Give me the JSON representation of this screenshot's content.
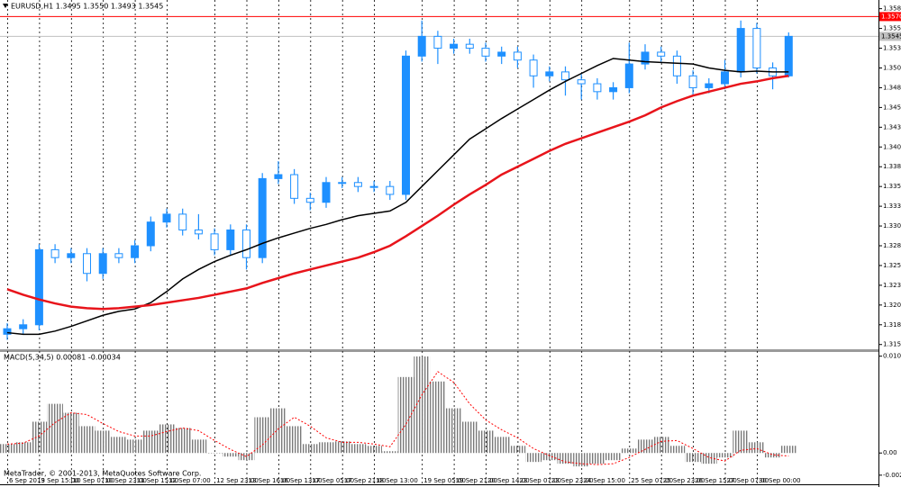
{
  "chart_data": [
    {
      "type": "candlestick",
      "title": "EURUSD,H1  1.3495 1.3550 1.3493 1.3545",
      "categories": [
        "6 Sep 2013",
        null,
        "9 Sep 15:00",
        null,
        "10 Sep 07:00",
        null,
        "10 Sep 23:00",
        null,
        "11 Sep 15:00",
        null,
        "12 Sep 07:00",
        null,
        null,
        "12 Sep 23:00",
        null,
        "13 Sep 16:00",
        null,
        "16 Sep 13:00",
        null,
        "17 Sep 05:00",
        null,
        "17 Sep 21:00",
        null,
        "18 Sep 13:00",
        null,
        null,
        "19 Sep 05:00",
        null,
        "19 Sep 21:00",
        null,
        "20 Sep 14:00",
        null,
        "23 Sep 07:00",
        null,
        "23 Sep 23:00",
        null,
        "24 Sep 15:00",
        null,
        null,
        "25 Sep 07:00",
        null,
        "25 Sep 23:00",
        null,
        "26 Sep 15:00",
        null,
        "27 Sep 07:00",
        null,
        "30 Sep 00:00",
        null,
        null
      ],
      "open": [
        1.3168,
        1.3175,
        1.318,
        1.3275,
        1.3265,
        1.327,
        1.3245,
        1.327,
        1.3265,
        1.328,
        1.331,
        1.332,
        1.33,
        1.3295,
        1.3275,
        1.33,
        1.3265,
        1.3365,
        1.337,
        1.334,
        1.3335,
        1.336,
        1.336,
        1.3355,
        1.3355,
        1.3345,
        1.352,
        1.3545,
        1.353,
        1.3535,
        1.353,
        1.352,
        1.3525,
        1.3515,
        1.3495,
        1.35,
        1.349,
        1.3485,
        1.3475,
        1.348,
        1.351,
        1.3525,
        1.352,
        1.3495,
        1.348,
        1.3485,
        1.35,
        1.3555,
        1.3505,
        1.3495
      ],
      "high": [
        1.3182,
        1.3187,
        1.3282,
        1.3282,
        1.3277,
        1.3277,
        1.3277,
        1.3277,
        1.3287,
        1.3317,
        1.3327,
        1.3327,
        1.332,
        1.3302,
        1.3307,
        1.3307,
        1.3372,
        1.3387,
        1.3377,
        1.3347,
        1.3367,
        1.3367,
        1.3367,
        1.3362,
        1.3362,
        1.3527,
        1.3565,
        1.3552,
        1.3542,
        1.3542,
        1.3537,
        1.3532,
        1.3532,
        1.3522,
        1.3507,
        1.3507,
        1.3497,
        1.3492,
        1.3487,
        1.3537,
        1.3535,
        1.3532,
        1.3527,
        1.3502,
        1.3492,
        1.3515,
        1.3565,
        1.3562,
        1.3512,
        1.355
      ],
      "low": [
        1.3161,
        1.3168,
        1.3173,
        1.3258,
        1.3258,
        1.3235,
        1.3238,
        1.3258,
        1.3258,
        1.3273,
        1.3303,
        1.3293,
        1.3288,
        1.3268,
        1.3268,
        1.325,
        1.3258,
        1.3358,
        1.3333,
        1.3325,
        1.3328,
        1.3353,
        1.3348,
        1.3348,
        1.3338,
        1.3338,
        1.3513,
        1.351,
        1.3523,
        1.3523,
        1.3513,
        1.351,
        1.3505,
        1.348,
        1.3488,
        1.347,
        1.3465,
        1.3465,
        1.3465,
        1.3473,
        1.3503,
        1.3513,
        1.3485,
        1.347,
        1.3473,
        1.3478,
        1.3493,
        1.3498,
        1.3478,
        1.3493
      ],
      "close": [
        1.3175,
        1.318,
        1.3275,
        1.3265,
        1.327,
        1.3245,
        1.327,
        1.3265,
        1.328,
        1.331,
        1.332,
        1.33,
        1.3295,
        1.3275,
        1.33,
        1.3265,
        1.3365,
        1.337,
        1.334,
        1.3335,
        1.336,
        1.336,
        1.3355,
        1.3355,
        1.3345,
        1.352,
        1.3545,
        1.353,
        1.3535,
        1.353,
        1.352,
        1.3525,
        1.3515,
        1.3495,
        1.35,
        1.349,
        1.3485,
        1.3475,
        1.348,
        1.351,
        1.3525,
        1.352,
        1.3495,
        1.348,
        1.3485,
        1.35,
        1.3555,
        1.3505,
        1.3495,
        1.3545
      ],
      "up_color": "#1e90ff",
      "down_color": "#1e90ff",
      "lines": [
        {
          "color": "#000000",
          "values": [
            1.317,
            1.3168,
            1.3168,
            1.3172,
            1.3178,
            1.3185,
            1.3192,
            1.3197,
            1.32,
            1.3208,
            1.3222,
            1.3238,
            1.325,
            1.326,
            1.3268,
            1.3275,
            1.3283,
            1.329,
            1.3296,
            1.3302,
            1.3307,
            1.3313,
            1.3318,
            1.3321,
            1.3324,
            1.3335,
            1.3355,
            1.3375,
            1.3395,
            1.3415,
            1.3428,
            1.3441,
            1.3453,
            1.3465,
            1.3477,
            1.3488,
            1.3498,
            1.3508,
            1.3517,
            1.3515,
            1.3513,
            1.3512,
            1.3511,
            1.351,
            1.3505,
            1.3502,
            1.35,
            1.3501,
            1.35,
            1.35
          ]
        },
        {
          "color": "#e8141b",
          "values": [
            1.3225,
            1.3218,
            1.3212,
            1.3207,
            1.3203,
            1.3201,
            1.32,
            1.3201,
            1.3203,
            1.3205,
            1.3208,
            1.3211,
            1.3214,
            1.3218,
            1.3222,
            1.3226,
            1.3233,
            1.3239,
            1.3245,
            1.325,
            1.3255,
            1.326,
            1.3265,
            1.3272,
            1.328,
            1.3292,
            1.3305,
            1.3318,
            1.3332,
            1.3345,
            1.3357,
            1.337,
            1.338,
            1.339,
            1.34,
            1.3409,
            1.3416,
            1.3423,
            1.343,
            1.3437,
            1.3445,
            1.3455,
            1.3463,
            1.347,
            1.3475,
            1.348,
            1.3485,
            1.3488,
            1.3492,
            1.3495
          ]
        }
      ],
      "hlines": [
        {
          "value": 1.357,
          "label": "1.3570",
          "color": "#ff0000"
        },
        {
          "value": 1.3545,
          "label": "1.3545",
          "color": "#c0c0c0"
        }
      ],
      "ylim": [
        1.3149,
        1.3591
      ],
      "yticks": [
        1.3155,
        {
          "value": 1.318,
          "label": "1.3180"
        },
        1.3205,
        {
          "value": 1.323,
          "label": "1.3230"
        },
        1.3255,
        {
          "value": 1.328,
          "label": "1.3280"
        },
        1.3305,
        {
          "value": 1.333,
          "label": "1.3330"
        },
        1.3355,
        {
          "value": 1.338,
          "label": "1.3380"
        },
        1.3405,
        {
          "value": 1.343,
          "label": "1.3430"
        },
        1.3455,
        {
          "value": 1.348,
          "label": "1.3480"
        },
        1.3505,
        {
          "value": 1.353,
          "label": "1.3530"
        },
        1.3555,
        {
          "value": 1.358,
          "label": "1.3580"
        }
      ],
      "grid": true
    },
    {
      "type": "macd",
      "title": "MACD(5,34,5) 0.00081 -0.00034",
      "histogram": [
        0.001,
        0.0012,
        0.0035,
        0.0055,
        0.0045,
        0.003,
        0.0025,
        0.0018,
        0.0015,
        0.0025,
        0.0032,
        0.0028,
        0.0015,
        0.0,
        -0.0004,
        -0.0008,
        0.004,
        0.005,
        0.003,
        0.001,
        0.0012,
        0.0013,
        0.001,
        0.0008,
        0.0002,
        0.0085,
        0.0108,
        0.008,
        0.005,
        0.0035,
        0.0025,
        0.0018,
        0.0008,
        -0.001,
        -0.0008,
        -0.0012,
        -0.0015,
        -0.0012,
        -0.0008,
        0.0005,
        0.0015,
        0.0018,
        0.0008,
        -0.001,
        -0.0012,
        -0.0005,
        0.0025,
        0.0012,
        -0.0005,
        0.00081
      ],
      "signal": [
        0.001,
        0.0011,
        0.0019,
        0.0034,
        0.0045,
        0.0043,
        0.0033,
        0.0024,
        0.0019,
        0.0019,
        0.0024,
        0.0028,
        0.0025,
        0.0014,
        0.0004,
        -0.0004,
        0.0009,
        0.0027,
        0.004,
        0.003,
        0.0017,
        0.0012,
        0.0012,
        0.001,
        0.0007,
        0.0032,
        0.0065,
        0.0091,
        0.0079,
        0.0055,
        0.0037,
        0.0026,
        0.0017,
        0.0005,
        -0.0003,
        -0.001,
        -0.0012,
        -0.0013,
        -0.0012,
        -0.0005,
        0.0004,
        0.0013,
        0.0014,
        0.0005,
        -0.0005,
        -0.0009,
        0.0003,
        0.0005,
        -0.0002,
        -0.00034
      ],
      "histogram_color": "#808080",
      "signal_color": "#ff0000",
      "ylim": [
        -0.0035,
        0.0113
      ],
      "yticks": [
        0.01083,
        {
          "value": 0,
          "label": "0.00"
        },
        -0.00248
      ]
    }
  ],
  "footer": "MetaTrader, © 2001-2013, MetaQuotes Software Corp."
}
